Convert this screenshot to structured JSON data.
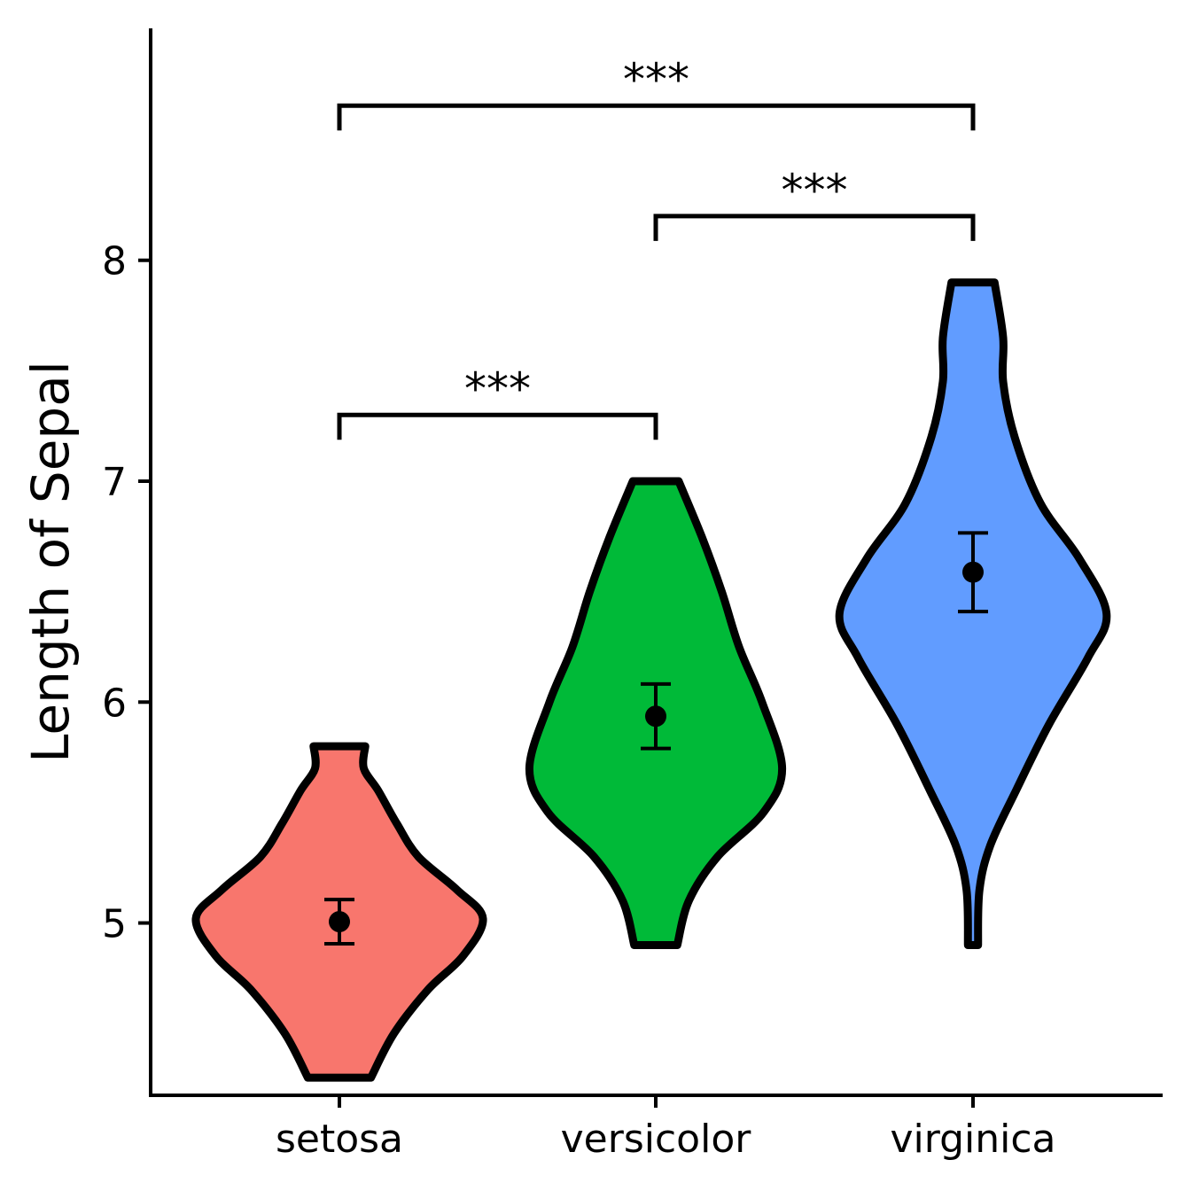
{
  "chart_data": {
    "type": "violin",
    "title": "",
    "xlabel": "",
    "ylabel": "Length of Sepal",
    "ylim": [
      4.22,
      9.05
    ],
    "yticks": [
      5,
      6,
      7,
      8
    ],
    "categories": [
      "setosa",
      "versicolor",
      "virginica"
    ],
    "grid": false,
    "legend": "none",
    "groups": [
      {
        "name": "setosa",
        "color": "#F8766D",
        "min": 4.3,
        "max": 5.8,
        "mean": 5.006,
        "ci_low": 4.906,
        "ci_high": 5.106,
        "density": [
          [
            4.3,
            0.22
          ],
          [
            4.5,
            0.38
          ],
          [
            4.7,
            0.62
          ],
          [
            4.85,
            0.86
          ],
          [
            5.02,
            1.0
          ],
          [
            5.15,
            0.82
          ],
          [
            5.3,
            0.55
          ],
          [
            5.45,
            0.4
          ],
          [
            5.6,
            0.27
          ],
          [
            5.7,
            0.17
          ],
          [
            5.8,
            0.18
          ]
        ]
      },
      {
        "name": "versicolor",
        "color": "#00BA38",
        "min": 4.9,
        "max": 7.0,
        "mean": 5.936,
        "ci_low": 5.79,
        "ci_high": 6.082,
        "density": [
          [
            4.9,
            0.15
          ],
          [
            5.1,
            0.23
          ],
          [
            5.3,
            0.43
          ],
          [
            5.5,
            0.75
          ],
          [
            5.7,
            0.88
          ],
          [
            6.0,
            0.74
          ],
          [
            6.25,
            0.58
          ],
          [
            6.5,
            0.46
          ],
          [
            6.75,
            0.32
          ],
          [
            7.0,
            0.16
          ]
        ]
      },
      {
        "name": "virginica",
        "color": "#619CFF",
        "min": 4.9,
        "max": 7.9,
        "mean": 6.588,
        "ci_low": 6.41,
        "ci_high": 6.766,
        "density": [
          [
            4.9,
            0.035
          ],
          [
            5.15,
            0.045
          ],
          [
            5.35,
            0.12
          ],
          [
            5.6,
            0.3
          ],
          [
            5.9,
            0.53
          ],
          [
            6.2,
            0.8
          ],
          [
            6.4,
            0.93
          ],
          [
            6.65,
            0.74
          ],
          [
            6.9,
            0.47
          ],
          [
            7.2,
            0.29
          ],
          [
            7.45,
            0.21
          ],
          [
            7.65,
            0.21
          ],
          [
            7.9,
            0.15
          ]
        ]
      }
    ],
    "comparisons": [
      {
        "from": "setosa",
        "to": "versicolor",
        "y": 7.3,
        "label": "***"
      },
      {
        "from": "versicolor",
        "to": "virginica",
        "y": 8.2,
        "label": "***"
      },
      {
        "from": "setosa",
        "to": "virginica",
        "y": 8.7,
        "label": "***"
      }
    ]
  }
}
